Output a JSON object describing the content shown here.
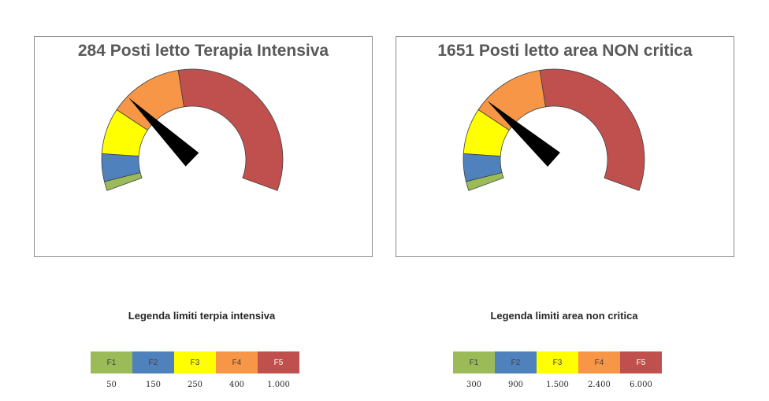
{
  "chart_data": [
    {
      "type": "gauge",
      "title": "284 Posti letto Terapia Intensiva",
      "value": 284,
      "bands": [
        {
          "label": "F1",
          "limit": 50,
          "color": "#9bbb59"
        },
        {
          "label": "F2",
          "limit": 150,
          "color": "#4f81bd"
        },
        {
          "label": "F3",
          "limit": 250,
          "color": "#ffff00"
        },
        {
          "label": "F4",
          "limit": 400,
          "color": "#f79646"
        },
        {
          "label": "F5",
          "limit": 1000,
          "color": "#c0504d"
        }
      ]
    },
    {
      "type": "gauge",
      "title": "1651 Posti letto area NON critica",
      "value": 1651,
      "bands": [
        {
          "label": "F1",
          "limit": 300,
          "color": "#9bbb59"
        },
        {
          "label": "F2",
          "limit": 900,
          "color": "#4f81bd"
        },
        {
          "label": "F3",
          "limit": 1500,
          "color": "#ffff00"
        },
        {
          "label": "F4",
          "limit": 2400,
          "color": "#f79646"
        },
        {
          "label": "F5",
          "limit": 6000,
          "color": "#c0504d"
        }
      ]
    }
  ],
  "legends": [
    {
      "title": "Legenda limiti terpia intensiva",
      "cells": [
        "F1",
        "F2",
        "F3",
        "F4",
        "F5"
      ],
      "values": [
        "50",
        "150",
        "250",
        "400",
        "1.000"
      ]
    },
    {
      "title": "Legenda limiti area non critica",
      "cells": [
        "F1",
        "F2",
        "F3",
        "F4",
        "F5"
      ],
      "values": [
        "300",
        "900",
        "1.500",
        "2.400",
        "6.000"
      ]
    }
  ]
}
